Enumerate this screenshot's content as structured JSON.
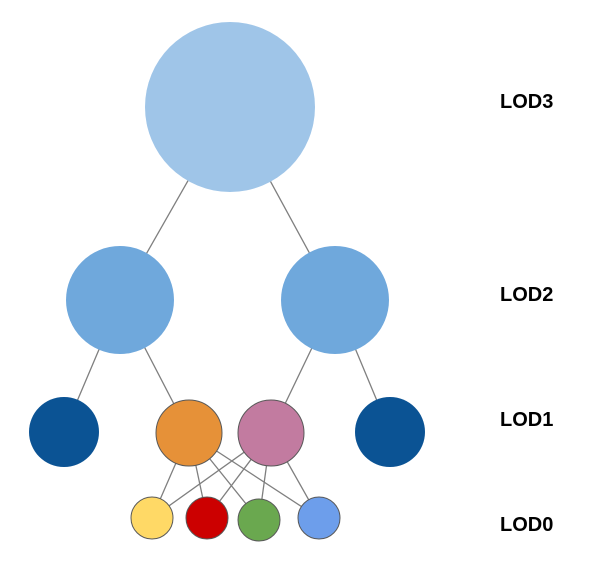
{
  "labels": {
    "lod3": "LOD3",
    "lod2": "LOD2",
    "lod1": "LOD1",
    "lod0": "LOD0"
  },
  "colors": {
    "lod3_node": "#9fc5e8",
    "lod2_node": "#6fa8dc",
    "lod1_outer": "#0b5394",
    "lod1_orange": "#e69138",
    "lod1_pink": "#c27ba0",
    "lod0_yellow": "#ffd966",
    "lod0_red": "#cc0000",
    "lod0_green": "#6aa84f",
    "lod0_blue": "#6d9eeb",
    "edge": "#7f7f7f"
  },
  "nodes": [
    {
      "id": "lod3",
      "name": "lod3-node",
      "color": "lod3_node"
    },
    {
      "id": "lod2-left",
      "name": "lod2-left-node",
      "color": "lod2_node"
    },
    {
      "id": "lod2-right",
      "name": "lod2-right-node",
      "color": "lod2_node"
    },
    {
      "id": "lod1-dark-left",
      "name": "lod1-dark-left-node",
      "color": "lod1_outer"
    },
    {
      "id": "lod1-orange",
      "name": "lod1-orange-node",
      "color": "lod1_orange"
    },
    {
      "id": "lod1-pink",
      "name": "lod1-pink-node",
      "color": "lod1_pink"
    },
    {
      "id": "lod1-dark-right",
      "name": "lod1-dark-right-node",
      "color": "lod1_outer"
    },
    {
      "id": "lod0-yellow",
      "name": "lod0-yellow-node",
      "color": "lod0_yellow"
    },
    {
      "id": "lod0-red",
      "name": "lod0-red-node",
      "color": "lod0_red"
    },
    {
      "id": "lod0-green",
      "name": "lod0-green-node",
      "color": "lod0_green"
    },
    {
      "id": "lod0-blue",
      "name": "lod0-blue-node",
      "color": "lod0_blue"
    }
  ],
  "edges": [
    [
      "lod3",
      "lod2-left"
    ],
    [
      "lod3",
      "lod2-right"
    ],
    [
      "lod2-left",
      "lod1-dark-left"
    ],
    [
      "lod2-left",
      "lod1-orange"
    ],
    [
      "lod2-right",
      "lod1-pink"
    ],
    [
      "lod2-right",
      "lod1-dark-right"
    ],
    [
      "lod1-orange",
      "lod0-yellow"
    ],
    [
      "lod1-orange",
      "lod0-red"
    ],
    [
      "lod1-orange",
      "lod0-green"
    ],
    [
      "lod1-orange",
      "lod0-blue"
    ],
    [
      "lod1-pink",
      "lod0-yellow"
    ],
    [
      "lod1-pink",
      "lod0-red"
    ],
    [
      "lod1-pink",
      "lod0-green"
    ],
    [
      "lod1-pink",
      "lod0-blue"
    ]
  ]
}
